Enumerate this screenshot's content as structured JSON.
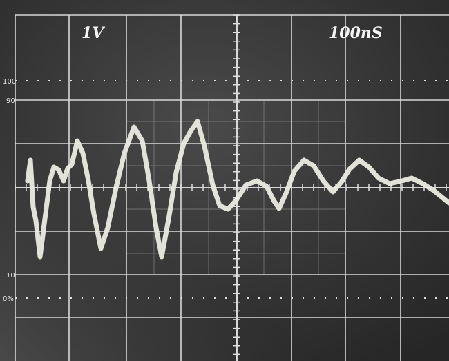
{
  "screen": {
    "volts_per_div": "1V",
    "time_per_div": "100nS",
    "scale_labels": [
      "100",
      "90",
      "10",
      "0%"
    ]
  }
}
